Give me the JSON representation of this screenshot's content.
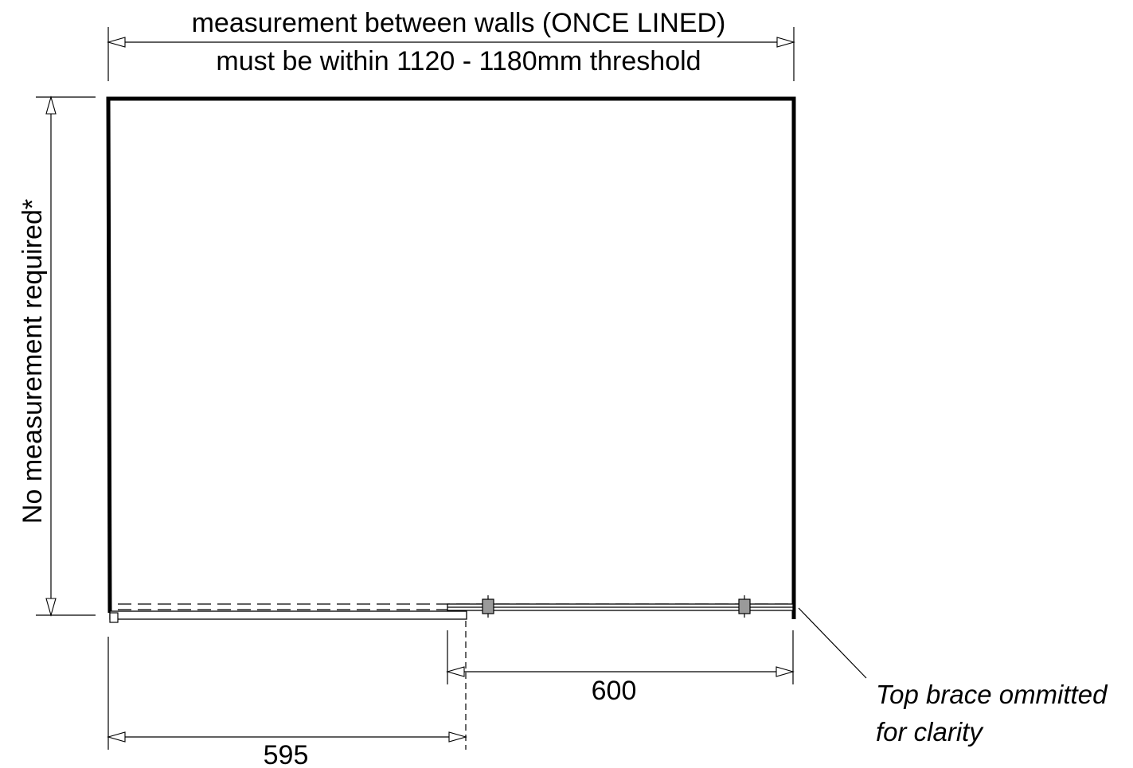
{
  "labels": {
    "top_line1": "measurement between walls (ONCE LINED)",
    "top_line2": "must be within 1120 - 1180mm threshold",
    "side": "No measurement required*",
    "dim_600": "600",
    "dim_595": "595",
    "note_line1": "Top brace ommitted",
    "note_line2": "for clarity"
  },
  "colors": {
    "line": "#000000",
    "fitting_fill": "#9a9a9a",
    "background": "#ffffff"
  }
}
